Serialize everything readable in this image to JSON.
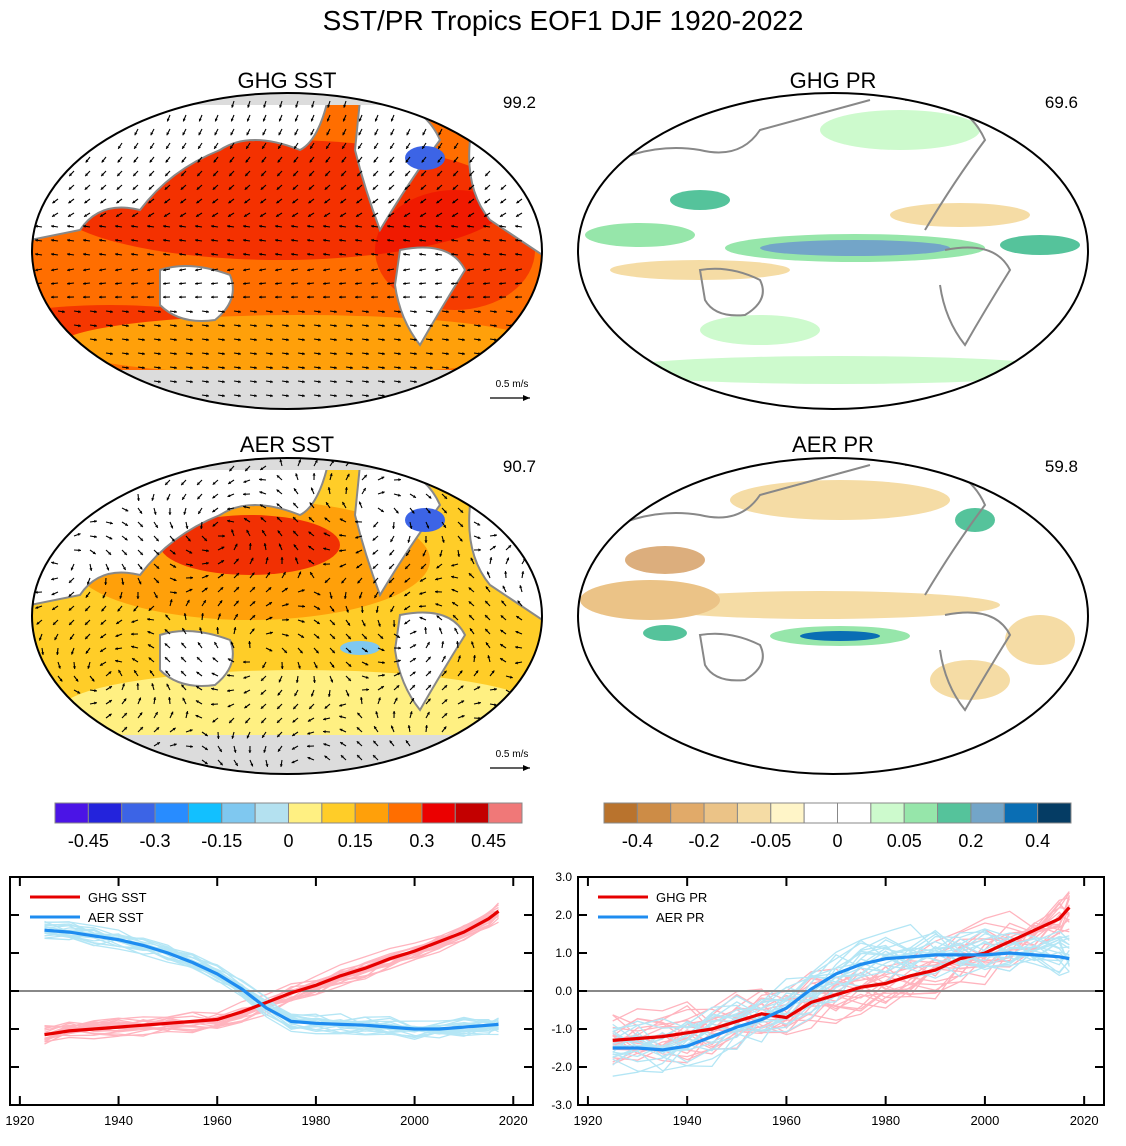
{
  "title": "SST/PR Tropics EOF1 DJF 1920-2022",
  "maps": [
    {
      "title": "GHG SST",
      "pct": "99.2",
      "vector_ref": "0.5 m/s"
    },
    {
      "title": "GHG PR",
      "pct": "69.6"
    },
    {
      "title": "AER SST",
      "pct": "90.7",
      "vector_ref": "0.5 m/s"
    },
    {
      "title": "AER PR",
      "pct": "59.8"
    }
  ],
  "colors": {
    "sst_scale": [
      "#4b14e6",
      "#2323dc",
      "#3c64e6",
      "#288cff",
      "#12c0ff",
      "#7fc8f0",
      "#b4e1f0",
      "#fff082",
      "#ffcd28",
      "#ffa00a",
      "#ff6e00",
      "#eb0000",
      "#c30000",
      "#f07878"
    ],
    "pr_scale": [
      "#b9732d",
      "#cd8c46",
      "#e1aa69",
      "#ebc387",
      "#f5dca5",
      "#fff5c8",
      "#ffffff",
      "#ffffff",
      "#cdfacd",
      "#96e6aa",
      "#55c39b",
      "#73a5c8",
      "#0a6eb4",
      "#053c64"
    ],
    "ghg_line": "#e60000",
    "aer_line": "#1e8cf0",
    "ghg_members": "#ffb4be",
    "aer_members": "#b4e6f5",
    "land": "#ffffff",
    "ice": "#dcdcdc"
  },
  "colorbars": [
    {
      "tick_labels": [
        "-0.45",
        "-0.3",
        "-0.15",
        "0",
        "0.15",
        "0.3",
        "0.45"
      ]
    },
    {
      "tick_labels": [
        "-0.4",
        "-0.2",
        "-0.05",
        "0",
        "0.05",
        "0.2",
        "0.4"
      ]
    }
  ],
  "chart_data": [
    {
      "type": "line",
      "title": "",
      "xlim": [
        1918,
        2024
      ],
      "ylim": [
        -3.0,
        3.0
      ],
      "x_ticks": [
        1920,
        1940,
        1960,
        1980,
        2000,
        2020
      ],
      "y_ticks": [
        -3,
        -2,
        -1,
        0,
        1,
        2,
        3
      ],
      "y_tick_labels": [],
      "legend": [
        {
          "name": "GHG SST"
        },
        {
          "name": "AER SST"
        }
      ],
      "series": [
        {
          "name": "GHG SST",
          "x": [
            1925,
            1930,
            1935,
            1940,
            1945,
            1950,
            1955,
            1960,
            1965,
            1970,
            1975,
            1980,
            1985,
            1990,
            1995,
            2000,
            2005,
            2010,
            2015,
            2017
          ],
          "values": [
            -1.15,
            -1.05,
            -1.0,
            -0.95,
            -0.9,
            -0.85,
            -0.8,
            -0.75,
            -0.55,
            -0.3,
            -0.05,
            0.15,
            0.4,
            0.6,
            0.85,
            1.05,
            1.3,
            1.55,
            1.9,
            2.1
          ]
        },
        {
          "name": "AER SST",
          "x": [
            1925,
            1930,
            1935,
            1940,
            1945,
            1950,
            1955,
            1960,
            1965,
            1970,
            1975,
            1980,
            1985,
            1990,
            1995,
            2000,
            2005,
            2010,
            2015,
            2017
          ],
          "values": [
            1.6,
            1.55,
            1.45,
            1.35,
            1.2,
            1.0,
            0.75,
            0.45,
            0.05,
            -0.45,
            -0.8,
            -0.85,
            -0.88,
            -0.9,
            -0.95,
            -1.0,
            -1.0,
            -0.95,
            -0.9,
            -0.88
          ]
        }
      ]
    },
    {
      "type": "line",
      "title": "",
      "xlim": [
        1918,
        2024
      ],
      "ylim": [
        -3.0,
        3.0
      ],
      "x_ticks": [
        1920,
        1940,
        1960,
        1980,
        2000,
        2020
      ],
      "y_ticks": [
        -3,
        -2,
        -1,
        0,
        1,
        2,
        3
      ],
      "y_tick_labels": [
        "-3.0",
        "-2.0",
        "-1.0",
        "0.0",
        "1.0",
        "2.0",
        "3.0"
      ],
      "legend": [
        {
          "name": "GHG PR"
        },
        {
          "name": "AER PR"
        }
      ],
      "series": [
        {
          "name": "GHG PR",
          "x": [
            1925,
            1930,
            1935,
            1940,
            1945,
            1950,
            1955,
            1960,
            1965,
            1970,
            1975,
            1980,
            1985,
            1990,
            1995,
            2000,
            2005,
            2010,
            2015,
            2017
          ],
          "values": [
            -1.3,
            -1.25,
            -1.2,
            -1.1,
            -1.0,
            -0.8,
            -0.6,
            -0.7,
            -0.3,
            -0.1,
            0.1,
            0.2,
            0.4,
            0.55,
            0.85,
            1.0,
            1.3,
            1.6,
            1.9,
            2.2
          ]
        },
        {
          "name": "AER PR",
          "x": [
            1925,
            1930,
            1935,
            1940,
            1945,
            1950,
            1955,
            1960,
            1965,
            1970,
            1975,
            1980,
            1985,
            1990,
            1995,
            2000,
            2005,
            2010,
            2015,
            2017
          ],
          "values": [
            -1.5,
            -1.5,
            -1.55,
            -1.45,
            -1.2,
            -0.95,
            -0.75,
            -0.45,
            0.05,
            0.45,
            0.7,
            0.85,
            0.9,
            0.95,
            0.95,
            0.95,
            1.0,
            0.95,
            0.9,
            0.85
          ]
        }
      ]
    }
  ]
}
